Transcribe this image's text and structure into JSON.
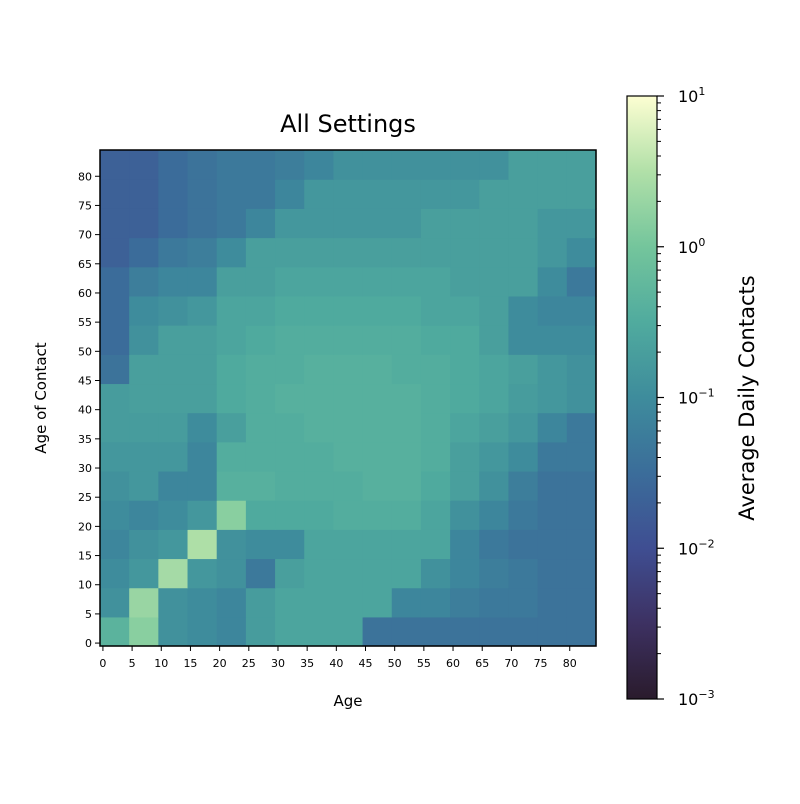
{
  "chart_data": {
    "type": "heatmap",
    "title": "All Settings",
    "xlabel": "Age",
    "ylabel": "Age of Contact",
    "x_ticks": [
      "0",
      "5",
      "10",
      "15",
      "20",
      "25",
      "30",
      "35",
      "40",
      "45",
      "50",
      "55",
      "60",
      "65",
      "70",
      "75",
      "80"
    ],
    "y_ticks": [
      "0",
      "5",
      "10",
      "15",
      "20",
      "25",
      "30",
      "35",
      "40",
      "45",
      "50",
      "55",
      "60",
      "65",
      "70",
      "75",
      "80"
    ],
    "age_range": [
      0,
      85
    ],
    "color_scale": "log",
    "colorbar": {
      "label": "Average Daily Contacts",
      "min": 0.001,
      "max": 10,
      "ticks": [
        "10^-3",
        "10^-2",
        "10^-1",
        "10^0",
        "10^1"
      ],
      "tick_values": [
        0.001,
        0.01,
        0.1,
        1,
        10
      ]
    },
    "age_groups": [
      "0-4",
      "5-9",
      "10-14",
      "15-19",
      "20-24",
      "25-29",
      "30-34",
      "35-39",
      "40-44",
      "45-49",
      "50-54",
      "55-59",
      "60-64",
      "65-69",
      "70-74",
      "75-79",
      "80-84"
    ],
    "values_approx": [
      [
        0.45,
        1.5,
        0.12,
        0.1,
        0.08,
        0.18,
        0.25,
        0.25,
        0.25,
        0.04,
        0.04,
        0.04,
        0.04,
        0.04,
        0.04,
        0.04,
        0.04
      ],
      [
        0.12,
        2.0,
        0.12,
        0.1,
        0.08,
        0.18,
        0.25,
        0.25,
        0.25,
        0.25,
        0.08,
        0.08,
        0.06,
        0.05,
        0.05,
        0.04,
        0.04
      ],
      [
        0.1,
        0.15,
        2.5,
        0.15,
        0.12,
        0.05,
        0.2,
        0.25,
        0.25,
        0.25,
        0.25,
        0.12,
        0.08,
        0.06,
        0.05,
        0.04,
        0.04
      ],
      [
        0.08,
        0.12,
        0.15,
        3.0,
        0.12,
        0.1,
        0.1,
        0.25,
        0.25,
        0.25,
        0.25,
        0.25,
        0.08,
        0.05,
        0.04,
        0.04,
        0.04
      ],
      [
        0.1,
        0.08,
        0.1,
        0.15,
        1.5,
        0.3,
        0.3,
        0.3,
        0.35,
        0.35,
        0.35,
        0.25,
        0.12,
        0.08,
        0.05,
        0.04,
        0.04
      ],
      [
        0.12,
        0.15,
        0.08,
        0.08,
        0.4,
        0.4,
        0.35,
        0.35,
        0.35,
        0.4,
        0.4,
        0.3,
        0.2,
        0.12,
        0.06,
        0.04,
        0.04
      ],
      [
        0.15,
        0.15,
        0.15,
        0.08,
        0.35,
        0.35,
        0.35,
        0.35,
        0.4,
        0.4,
        0.4,
        0.35,
        0.2,
        0.15,
        0.1,
        0.05,
        0.05
      ],
      [
        0.18,
        0.18,
        0.18,
        0.1,
        0.2,
        0.35,
        0.35,
        0.4,
        0.4,
        0.4,
        0.4,
        0.35,
        0.25,
        0.2,
        0.15,
        0.08,
        0.05
      ],
      [
        0.18,
        0.2,
        0.2,
        0.2,
        0.3,
        0.35,
        0.4,
        0.4,
        0.4,
        0.4,
        0.4,
        0.35,
        0.3,
        0.25,
        0.18,
        0.15,
        0.12
      ],
      [
        0.04,
        0.2,
        0.2,
        0.2,
        0.3,
        0.35,
        0.35,
        0.4,
        0.4,
        0.4,
        0.35,
        0.35,
        0.3,
        0.25,
        0.2,
        0.15,
        0.12
      ],
      [
        0.03,
        0.12,
        0.2,
        0.2,
        0.25,
        0.3,
        0.35,
        0.35,
        0.35,
        0.35,
        0.35,
        0.3,
        0.3,
        0.2,
        0.1,
        0.1,
        0.1
      ],
      [
        0.03,
        0.1,
        0.12,
        0.15,
        0.25,
        0.25,
        0.3,
        0.3,
        0.3,
        0.3,
        0.3,
        0.25,
        0.25,
        0.2,
        0.1,
        0.08,
        0.08
      ],
      [
        0.03,
        0.06,
        0.08,
        0.08,
        0.2,
        0.2,
        0.25,
        0.25,
        0.25,
        0.25,
        0.25,
        0.25,
        0.2,
        0.2,
        0.2,
        0.1,
        0.05
      ],
      [
        0.02,
        0.03,
        0.05,
        0.06,
        0.1,
        0.2,
        0.2,
        0.2,
        0.2,
        0.2,
        0.2,
        0.2,
        0.2,
        0.2,
        0.2,
        0.15,
        0.1
      ],
      [
        0.02,
        0.02,
        0.03,
        0.04,
        0.05,
        0.08,
        0.15,
        0.15,
        0.15,
        0.15,
        0.15,
        0.2,
        0.2,
        0.2,
        0.2,
        0.15,
        0.15
      ],
      [
        0.02,
        0.02,
        0.03,
        0.04,
        0.05,
        0.05,
        0.08,
        0.15,
        0.15,
        0.15,
        0.15,
        0.15,
        0.15,
        0.2,
        0.2,
        0.2,
        0.2
      ],
      [
        0.02,
        0.02,
        0.03,
        0.04,
        0.05,
        0.05,
        0.06,
        0.08,
        0.12,
        0.12,
        0.12,
        0.12,
        0.12,
        0.12,
        0.2,
        0.2,
        0.2
      ]
    ]
  }
}
